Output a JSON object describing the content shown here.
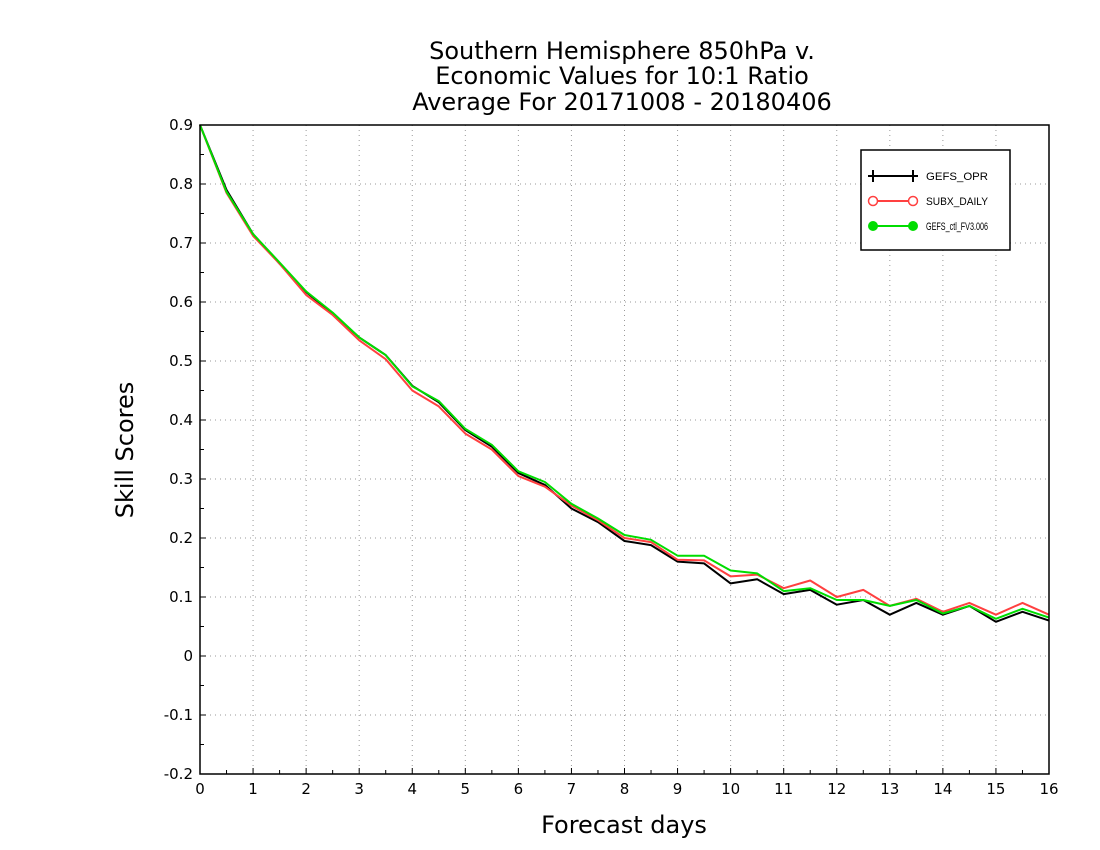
{
  "chart_data": {
    "type": "line",
    "title": [
      "Southern Hemisphere 850hPa v.",
      "Economic Values for 10:1 Ratio",
      "Average For 20171008 - 20180406"
    ],
    "xlabel": "Forecast days",
    "ylabel": "Skill Scores",
    "xlim": [
      0,
      16
    ],
    "ylim": [
      -0.2,
      0.9
    ],
    "xticks": [
      0,
      1,
      2,
      3,
      4,
      5,
      6,
      7,
      8,
      9,
      10,
      11,
      12,
      13,
      14,
      15,
      16
    ],
    "yticks": [
      -0.2,
      -0.1,
      0,
      0.1,
      0.2,
      0.3,
      0.4,
      0.5,
      0.6,
      0.7,
      0.8,
      0.9
    ],
    "ytick_labels": [
      "-0.2",
      "-0.1",
      "0",
      "0.1",
      "0.2",
      "0.3",
      "0.4",
      "0.5",
      "0.6",
      "0.7",
      "0.8",
      "0.9"
    ],
    "grid": true,
    "legend_position": "top-right",
    "x": [
      0,
      0.5,
      1,
      1.5,
      2,
      2.5,
      3,
      3.5,
      4,
      4.5,
      5,
      5.5,
      6,
      6.5,
      7,
      7.5,
      8,
      8.5,
      9,
      9.5,
      10,
      10.5,
      11,
      11.5,
      12,
      12.5,
      13,
      13.5,
      14,
      14.5,
      15,
      15.5,
      16
    ],
    "series": [
      {
        "name": "GEFS_OPR",
        "color": "#000000",
        "marker": "plus",
        "values": [
          0.9,
          0.79,
          0.715,
          0.665,
          0.617,
          0.58,
          0.54,
          0.51,
          0.458,
          0.43,
          0.383,
          0.355,
          0.31,
          0.29,
          0.25,
          0.227,
          0.195,
          0.188,
          0.16,
          0.157,
          0.123,
          0.13,
          0.105,
          0.112,
          0.087,
          0.095,
          0.07,
          0.09,
          0.07,
          0.085,
          0.058,
          0.075,
          0.06
        ]
      },
      {
        "name": "SUBX_DAILY",
        "color": "#ff4040",
        "marker": "open-circle",
        "values": [
          0.9,
          0.785,
          0.712,
          0.665,
          0.612,
          0.578,
          0.535,
          0.503,
          0.45,
          0.423,
          0.377,
          0.35,
          0.305,
          0.287,
          0.255,
          0.23,
          0.2,
          0.193,
          0.163,
          0.162,
          0.135,
          0.138,
          0.115,
          0.128,
          0.1,
          0.112,
          0.085,
          0.097,
          0.075,
          0.09,
          0.07,
          0.09,
          0.07
        ]
      },
      {
        "name": "GEFS_ctl_FV3.006",
        "color": "#00dd00",
        "marker": "filled-circle",
        "values": [
          0.9,
          0.787,
          0.715,
          0.667,
          0.618,
          0.582,
          0.54,
          0.51,
          0.457,
          0.432,
          0.385,
          0.358,
          0.313,
          0.295,
          0.258,
          0.233,
          0.205,
          0.197,
          0.17,
          0.17,
          0.145,
          0.14,
          0.11,
          0.115,
          0.095,
          0.095,
          0.085,
          0.095,
          0.072,
          0.085,
          0.063,
          0.08,
          0.065
        ]
      }
    ]
  }
}
